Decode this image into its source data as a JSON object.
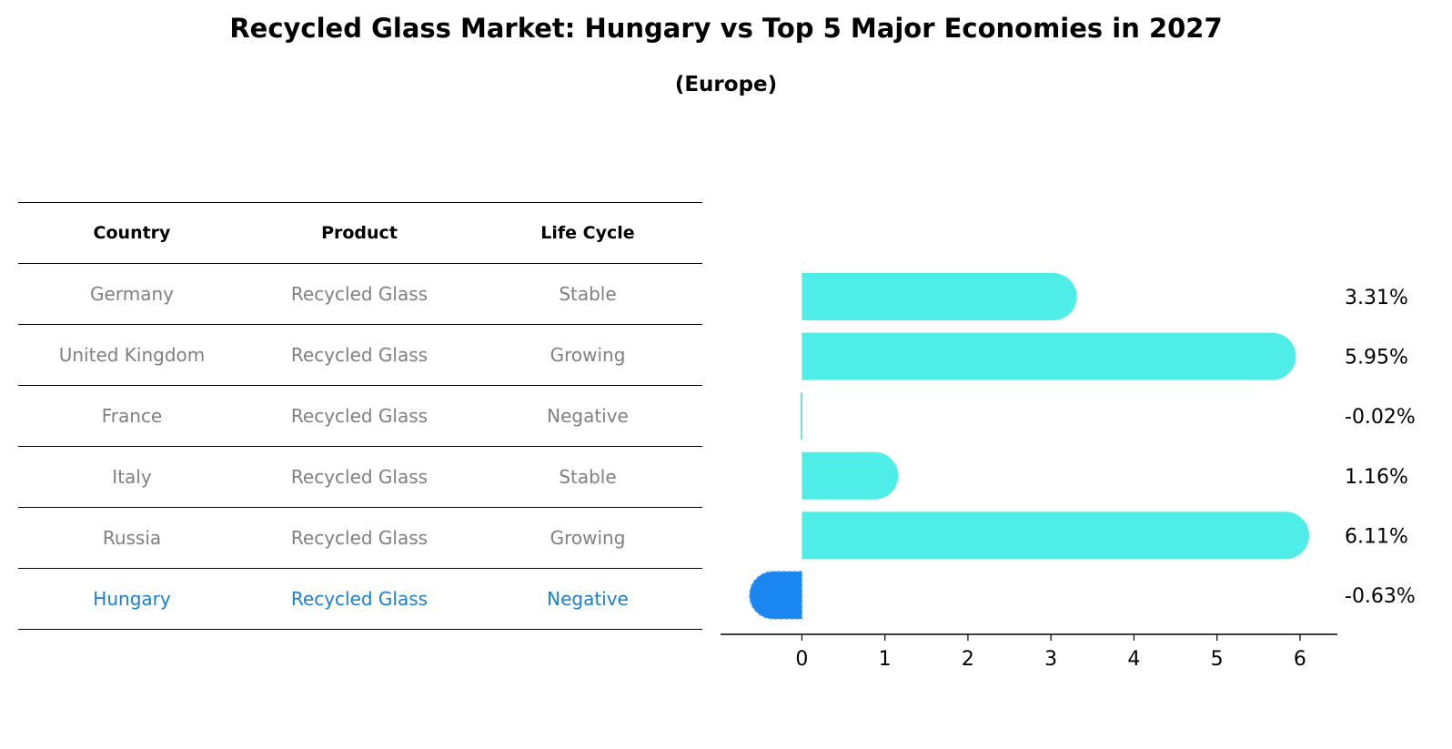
{
  "title": "Recycled Glass Market: Hungary vs Top 5 Major Economies in 2027",
  "subtitle": "(Europe)",
  "table": {
    "headers": [
      "Country",
      "Product",
      "Life Cycle"
    ],
    "rows": [
      {
        "country": "Germany",
        "product": "Recycled Glass",
        "life_cycle": "Stable"
      },
      {
        "country": "United Kingdom",
        "product": "Recycled Glass",
        "life_cycle": "Growing"
      },
      {
        "country": "France",
        "product": "Recycled Glass",
        "life_cycle": "Negative"
      },
      {
        "country": "Italy",
        "product": "Recycled Glass",
        "life_cycle": "Stable"
      },
      {
        "country": "Russia",
        "product": "Recycled Glass",
        "life_cycle": "Growing"
      },
      {
        "country": "Hungary",
        "product": "Recycled Glass",
        "life_cycle": "Negative"
      }
    ]
  },
  "colors": {
    "bar": "#4eede8",
    "highlight_bar": "#1a86f0",
    "highlight_text": "#1a7fd4",
    "muted_text": "#808080"
  },
  "chart_data": {
    "type": "bar",
    "orientation": "horizontal",
    "categories": [
      "Germany",
      "United Kingdom",
      "France",
      "Italy",
      "Russia",
      "Hungary"
    ],
    "values": [
      3.31,
      5.95,
      -0.02,
      1.16,
      6.11,
      -0.63
    ],
    "data_labels": [
      "3.31%",
      "5.95%",
      "-0.02%",
      "1.16%",
      "6.11%",
      "-0.63%"
    ],
    "highlight": "Hungary",
    "xlim": [
      -0.98,
      6.45
    ],
    "xticks": [
      0,
      1,
      2,
      3,
      4,
      5,
      6
    ],
    "grid": false,
    "legend": "none"
  }
}
